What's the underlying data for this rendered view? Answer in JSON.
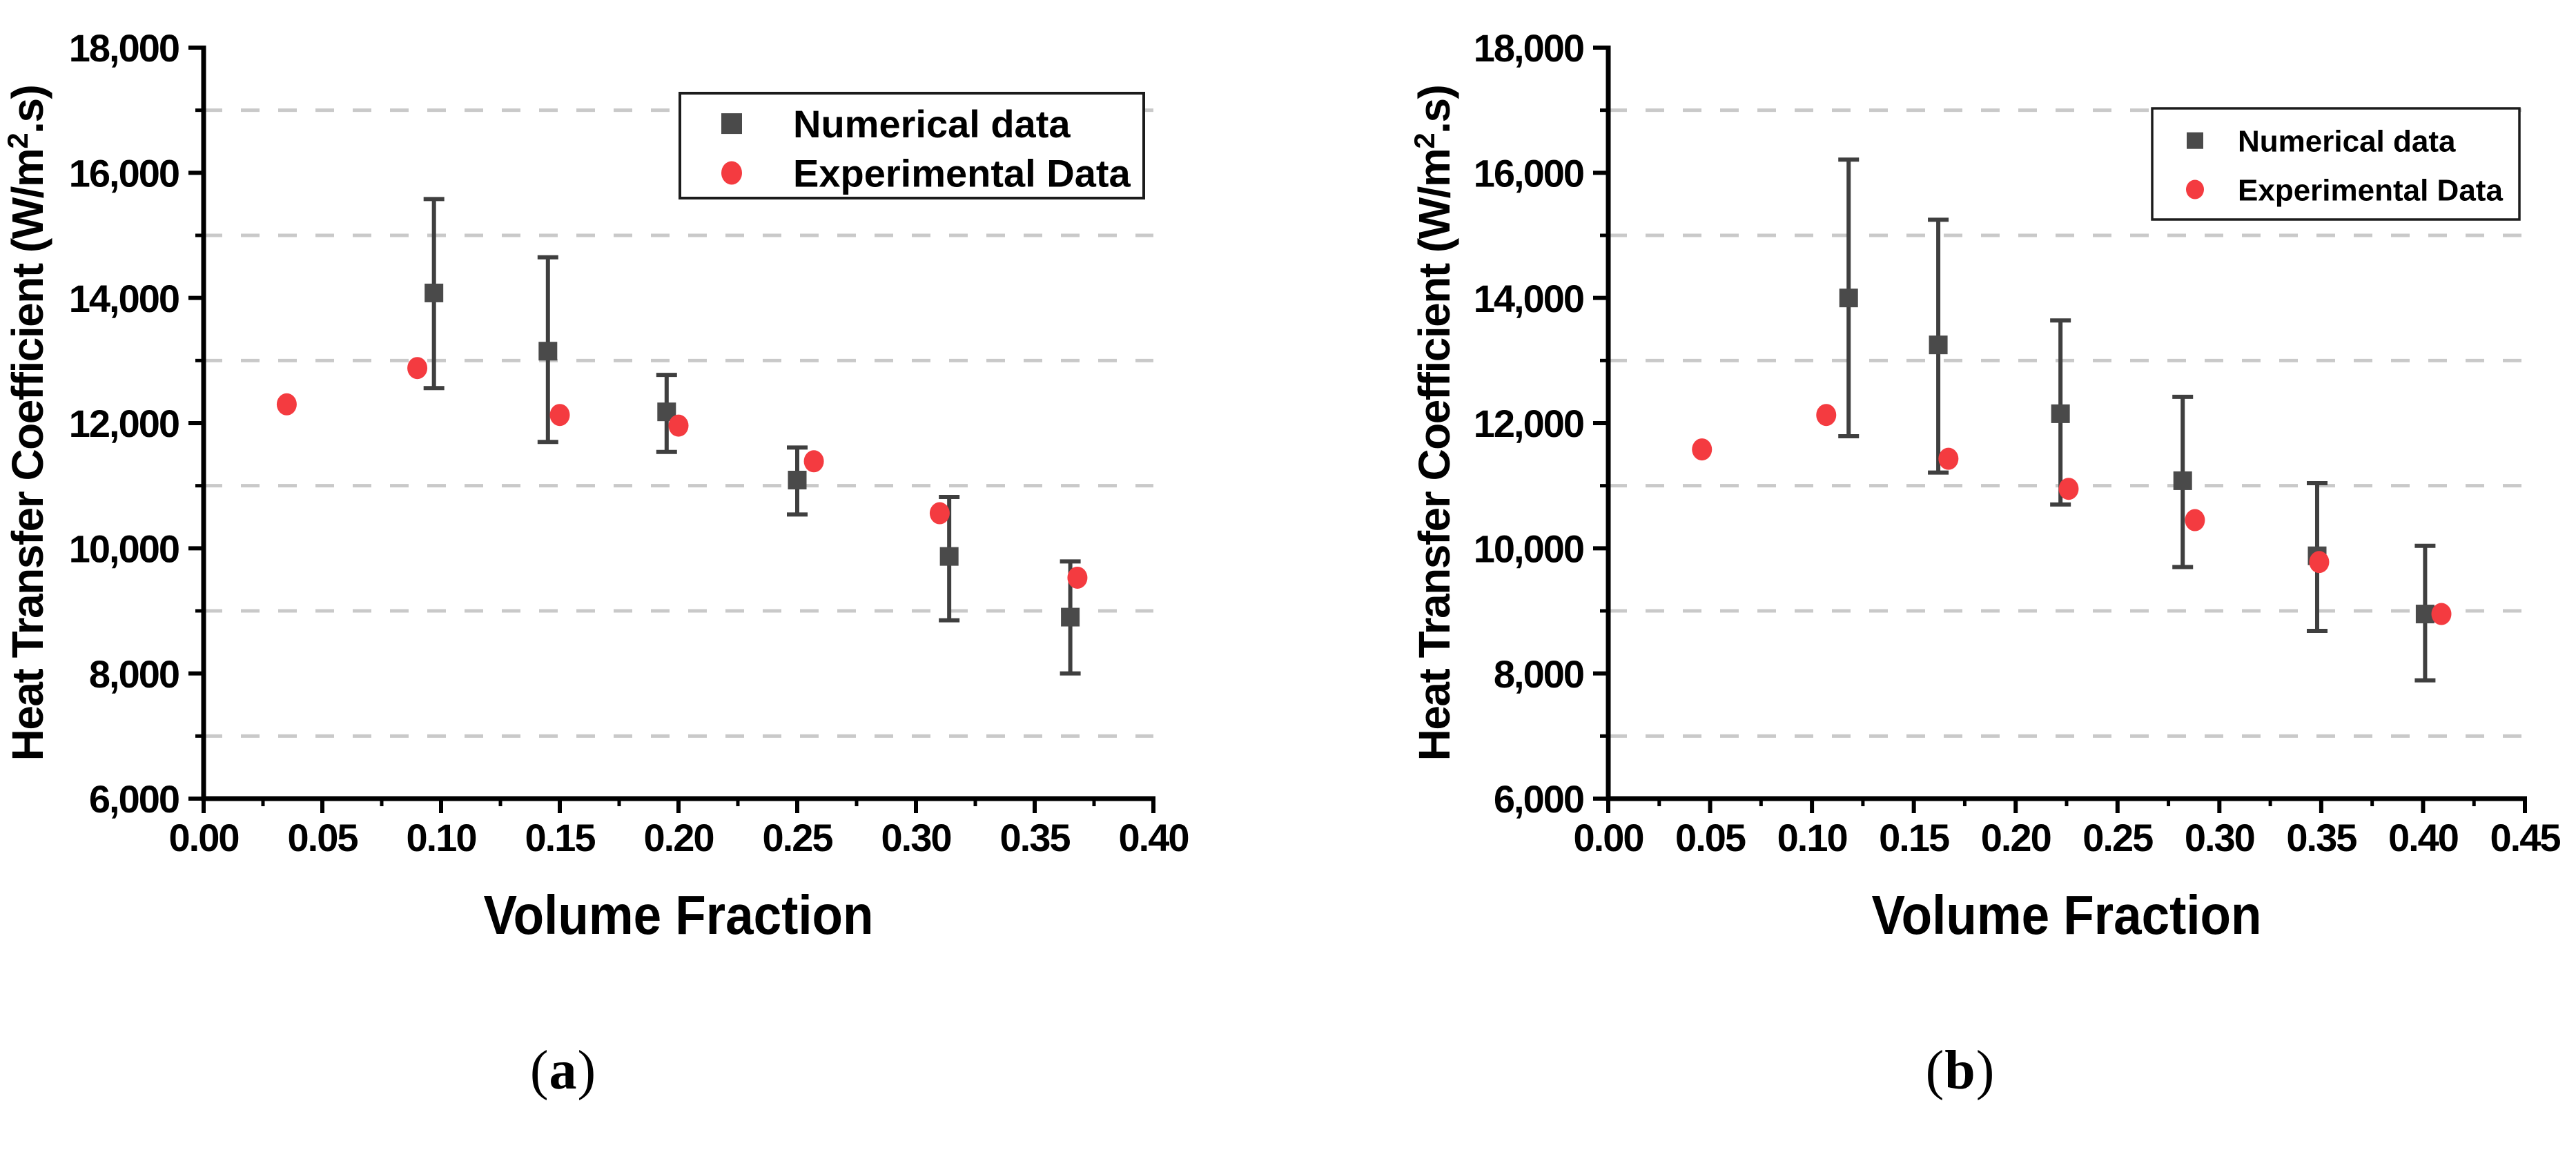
{
  "figure": {
    "background": "#ffffff",
    "captions": [
      {
        "open": "(",
        "letter": "a",
        "close": ")"
      },
      {
        "open": "(",
        "letter": "b",
        "close": ")"
      }
    ]
  },
  "style": {
    "axis_color": "#000000",
    "text_color": "#000000",
    "grid_color": "#c9c9c9",
    "legend_border": "#1c1c1c",
    "legend_fill": "#ffffff",
    "numerical_color": "#4a4a4a",
    "errorbar_color": "#3f3f3f",
    "experimental_color": "#f43b40"
  },
  "chart_data": [
    {
      "id": "a",
      "type": "scatter",
      "title": "",
      "xlabel": "Volume Fraction",
      "ylabel_parts": {
        "pre": "Heat Transfer Coefficient (W/m",
        "sup": "2",
        "post": ".s)"
      },
      "xlim": [
        0,
        0.4
      ],
      "ylim": [
        6000,
        18000
      ],
      "grid": "dashed-horizontal",
      "legend_position": "top-right",
      "x_major_ticks": [
        {
          "v": 0.0,
          "label": "0.00"
        },
        {
          "v": 0.05,
          "label": "0.05"
        },
        {
          "v": 0.1,
          "label": "0.10"
        },
        {
          "v": 0.15,
          "label": "0.15"
        },
        {
          "v": 0.2,
          "label": "0.20"
        },
        {
          "v": 0.25,
          "label": "0.25"
        },
        {
          "v": 0.3,
          "label": "0.30"
        },
        {
          "v": 0.35,
          "label": "0.35"
        },
        {
          "v": 0.4,
          "label": "0.40"
        }
      ],
      "x_minor_step": 0.025,
      "y_major_ticks": [
        {
          "v": 18000,
          "label": "18,000"
        },
        {
          "v": 16000,
          "label": "16,000"
        },
        {
          "v": 14000,
          "label": "14,000"
        },
        {
          "v": 12000,
          "label": "12,000"
        },
        {
          "v": 10000,
          "label": "10,000"
        },
        {
          "v": 8000,
          "label": "8,000"
        },
        {
          "v": 6000,
          "label": "6,000"
        }
      ],
      "y_grid_values": [
        17000,
        15000,
        13000,
        11000,
        9000,
        7000
      ],
      "series": [
        {
          "name": "Numerical data",
          "marker": "square",
          "error_bars": true,
          "points": [
            {
              "x": 0.097,
              "y": 14080,
              "y_low": 12560,
              "y_high": 15580
            },
            {
              "x": 0.145,
              "y": 13150,
              "y_low": 11700,
              "y_high": 14650
            },
            {
              "x": 0.195,
              "y": 12180,
              "y_low": 11540,
              "y_high": 12770
            },
            {
              "x": 0.25,
              "y": 11090,
              "y_low": 10540,
              "y_high": 11610
            },
            {
              "x": 0.314,
              "y": 9870,
              "y_low": 8850,
              "y_high": 10820
            },
            {
              "x": 0.365,
              "y": 8900,
              "y_low": 8000,
              "y_high": 9790
            }
          ]
        },
        {
          "name": "Experimental Data",
          "marker": "circle",
          "error_bars": false,
          "points": [
            {
              "x": 0.035,
              "y": 12300
            },
            {
              "x": 0.09,
              "y": 12880
            },
            {
              "x": 0.15,
              "y": 12130
            },
            {
              "x": 0.2,
              "y": 11960
            },
            {
              "x": 0.257,
              "y": 11390
            },
            {
              "x": 0.31,
              "y": 10560
            },
            {
              "x": 0.368,
              "y": 9530
            }
          ]
        }
      ]
    },
    {
      "id": "b",
      "type": "scatter",
      "title": "",
      "xlabel": "Volume Fraction",
      "ylabel_parts": {
        "pre": "Heat Transfer Coefficient (W/m",
        "sup": "2",
        "post": ".s)"
      },
      "xlim": [
        0,
        0.45
      ],
      "ylim": [
        6000,
        18000
      ],
      "grid": "dashed-horizontal",
      "legend_position": "top-right",
      "x_major_ticks": [
        {
          "v": 0.0,
          "label": "0.00"
        },
        {
          "v": 0.05,
          "label": "0.05"
        },
        {
          "v": 0.1,
          "label": "0.10"
        },
        {
          "v": 0.15,
          "label": "0.15"
        },
        {
          "v": 0.2,
          "label": "0.20"
        },
        {
          "v": 0.25,
          "label": "0.25"
        },
        {
          "v": 0.3,
          "label": "0.30"
        },
        {
          "v": 0.35,
          "label": "0.35"
        },
        {
          "v": 0.4,
          "label": "0.40"
        },
        {
          "v": 0.45,
          "label": "0.45"
        }
      ],
      "x_minor_step": 0.025,
      "y_major_ticks": [
        {
          "v": 18000,
          "label": "18,000"
        },
        {
          "v": 16000,
          "label": "16,000"
        },
        {
          "v": 14000,
          "label": "14,000"
        },
        {
          "v": 12000,
          "label": "12,000"
        },
        {
          "v": 10000,
          "label": "10,000"
        },
        {
          "v": 8000,
          "label": "8,000"
        },
        {
          "v": 6000,
          "label": "6,000"
        }
      ],
      "y_grid_values": [
        17000,
        15000,
        13000,
        11000,
        9000,
        7000
      ],
      "series": [
        {
          "name": "Numerical data",
          "marker": "square",
          "error_bars": true,
          "points": [
            {
              "x": 0.118,
              "y": 14000,
              "y_low": 11790,
              "y_high": 16210
            },
            {
              "x": 0.162,
              "y": 13250,
              "y_low": 11210,
              "y_high": 15250
            },
            {
              "x": 0.222,
              "y": 12150,
              "y_low": 10700,
              "y_high": 13640
            },
            {
              "x": 0.282,
              "y": 11080,
              "y_low": 9700,
              "y_high": 12420
            },
            {
              "x": 0.348,
              "y": 9880,
              "y_low": 8680,
              "y_high": 11040
            },
            {
              "x": 0.401,
              "y": 8950,
              "y_low": 7890,
              "y_high": 10040
            }
          ]
        },
        {
          "name": "Experimental Data",
          "marker": "circle",
          "error_bars": false,
          "points": [
            {
              "x": 0.046,
              "y": 11580
            },
            {
              "x": 0.107,
              "y": 12130
            },
            {
              "x": 0.167,
              "y": 11430
            },
            {
              "x": 0.226,
              "y": 10950
            },
            {
              "x": 0.288,
              "y": 10450
            },
            {
              "x": 0.349,
              "y": 9780
            },
            {
              "x": 0.409,
              "y": 8950
            }
          ]
        }
      ]
    }
  ]
}
